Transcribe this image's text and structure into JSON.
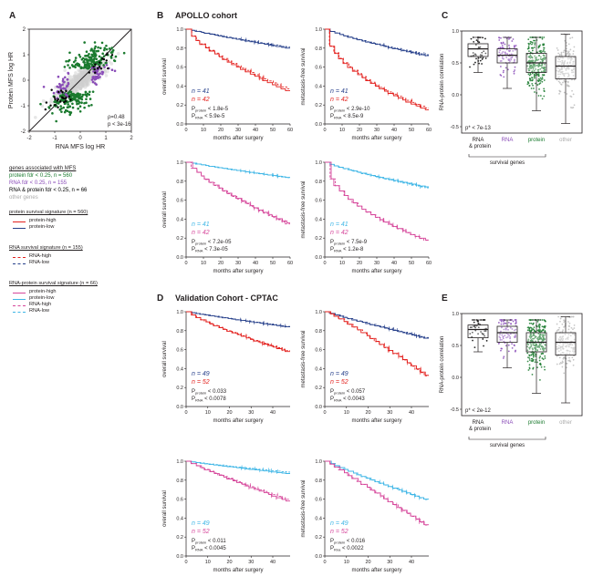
{
  "panels": {
    "A": "A",
    "B": "B",
    "C": "C",
    "D": "D",
    "E": "E"
  },
  "titles": {
    "apollo": "APOLLO cohort",
    "cptac": "Validation Cohort - CPTAC"
  },
  "panelA": {
    "xlabel": "RNA MFS log HR",
    "ylabel": "Protein MFS log HR",
    "rho": "ρ=0.48",
    "p": "p < 3e-16",
    "xticks": [
      "-2",
      "-1",
      "0",
      "1",
      "2"
    ],
    "yticks": [
      "2",
      "1",
      "0",
      "-1",
      "-2"
    ]
  },
  "legendA": {
    "header": "genes associated with MFS",
    "protein": "protein fdr < 0.25, n = 560",
    "rna": "RNA fdr < 0.25, n = 155",
    "both": "RNA & protein fdr < 0.25, n = 66",
    "other": "other genes"
  },
  "signatureLegends": [
    {
      "header": "protein survival signature (n = 560)",
      "items": [
        {
          "label": "protein-high",
          "color": "#e3211e",
          "style": "solid"
        },
        {
          "label": "protein-low",
          "color": "#27408b",
          "style": "solid"
        }
      ]
    },
    {
      "header": "RNA survival signature (n = 155)",
      "items": [
        {
          "label": "RNA-high",
          "color": "#e3211e",
          "style": "dashed"
        },
        {
          "label": "RNA-low",
          "color": "#27408b",
          "style": "dashed"
        }
      ]
    },
    {
      "header": "RNA-protein survival signature (n = 66)",
      "items": [
        {
          "label": "protein-high",
          "color": "#d6479b",
          "style": "solid"
        },
        {
          "label": "protein-low",
          "color": "#3fb6e6",
          "style": "solid"
        },
        {
          "label": "RNA-high",
          "color": "#d6479b",
          "style": "dashed"
        },
        {
          "label": "RNA-low",
          "color": "#3fb6e6",
          "style": "dashed"
        }
      ]
    }
  ],
  "km": [
    {
      "id": "b1",
      "ylabel": "overall survival",
      "xmax": 60,
      "n1": "n = 41",
      "n2": "n = 42",
      "p1": "P",
      "p1sub": "protein",
      "p1val": " < 1.8e-5",
      "p2": "P",
      "p2sub": "RNA",
      "p2val": " < 5.9e-5",
      "c1": "#27408b",
      "c2": "#e3211e"
    },
    {
      "id": "b2",
      "ylabel": "metastasis-free survival",
      "xmax": 60,
      "n1": "n = 41",
      "n2": "n = 42",
      "p1": "P",
      "p1sub": "protein",
      "p1val": " < 2.9e-10",
      "p2": "P",
      "p2sub": "RNA",
      "p2val": " < 8.5e-9",
      "c1": "#27408b",
      "c2": "#e3211e"
    },
    {
      "id": "b3",
      "ylabel": "overall survival",
      "xmax": 60,
      "n1": "n = 41",
      "n2": "n = 42",
      "p1": "P",
      "p1sub": "protein",
      "p1val": " < 7.2e-05",
      "p2": "P",
      "p2sub": "RNA",
      "p2val": " < 7.3e-05",
      "c1": "#3fb6e6",
      "c2": "#d6479b"
    },
    {
      "id": "b4",
      "ylabel": "metastasis-free survival",
      "xmax": 60,
      "n1": "n = 41",
      "n2": "n = 42",
      "p1": "P",
      "p1sub": "protein",
      "p1val": " < 7.5e-9",
      "p2": "P",
      "p2sub": "RNA",
      "p2val": " < 1.2e-8",
      "c1": "#3fb6e6",
      "c2": "#d6479b"
    },
    {
      "id": "d1",
      "ylabel": "overall survival",
      "xmax": 48,
      "n1": "n = 49",
      "n2": "n = 52",
      "p1": "P",
      "p1sub": "protein",
      "p1val": " < 0.033",
      "p2": "P",
      "p2sub": "RNA",
      "p2val": " < 0.0078",
      "c1": "#27408b",
      "c2": "#e3211e"
    },
    {
      "id": "d2",
      "ylabel": "metastasis-free survival",
      "xmax": 48,
      "n1": "n = 49",
      "n2": "n = 52",
      "p1": "P",
      "p1sub": "protein",
      "p1val": " < 0.057",
      "p2": "P",
      "p2sub": "RNA",
      "p2val": " < 0.0043",
      "c1": "#27408b",
      "c2": "#e3211e"
    },
    {
      "id": "d3",
      "ylabel": "overall survival",
      "xmax": 48,
      "n1": "n = 49",
      "n2": "n = 52",
      "p1": "P",
      "p1sub": "protein",
      "p1val": " < 0.011",
      "p2": "P",
      "p2sub": "RNA",
      "p2val": " < 0.0045",
      "c1": "#3fb6e6",
      "c2": "#d6479b"
    },
    {
      "id": "d4",
      "ylabel": "metastasis-free survival",
      "xmax": 48,
      "n1": "n = 49",
      "n2": "n = 52",
      "p1": "P",
      "p1sub": "protein",
      "p1val": " < 0.016",
      "p2": "P",
      "p2sub": "Rna",
      "p2val": " < 0.0022",
      "c1": "#3fb6e6",
      "c2": "#d6479b"
    }
  ],
  "kmAxis": {
    "xlabel": "months after surgery",
    "yticks": [
      "0.0",
      "0.2",
      "0.4",
      "0.6",
      "0.8",
      "1.0"
    ],
    "xticksB": [
      "0",
      "10",
      "20",
      "30",
      "40",
      "50",
      "60"
    ],
    "xticksD": [
      "0",
      "10",
      "20",
      "30",
      "40"
    ]
  },
  "boxC": {
    "ylabel": "RNA-protein correlation",
    "pval": "p* < 7e-13",
    "yticks": [
      "1.0",
      "0.5",
      "0.0",
      "-0.5"
    ],
    "cats": [
      "RNA\n& protein",
      "RNA",
      "protein",
      "other"
    ],
    "bracket": "survival genes"
  },
  "boxE": {
    "ylabel": "RNA-protein correlation",
    "pval": "p* < 2e-12",
    "yticks": [
      "1.0",
      "0.5",
      "0.0",
      "-0.5"
    ],
    "cats": [
      "RNA\n& protein",
      "RNA",
      "protein",
      "other"
    ],
    "bracket": "survival genes"
  },
  "chart_data": [
    {
      "type": "scatter",
      "title": "",
      "xlabel": "RNA MFS log HR",
      "ylabel": "Protein MFS log HR",
      "xlim": [
        -2,
        2
      ],
      "ylim": [
        -2,
        2
      ],
      "series": [
        {
          "name": "protein fdr < 0.25",
          "color": "#1a7a2e"
        },
        {
          "name": "RNA fdr < 0.25",
          "color": "#8a4cb8"
        },
        {
          "name": "RNA & protein fdr < 0.25",
          "color": "#000000"
        },
        {
          "name": "other genes",
          "color": "#c8c8c8"
        }
      ]
    },
    {
      "type": "line",
      "title": "APOLLO overall survival",
      "xlabel": "months after surgery",
      "ylabel": "overall survival",
      "xlim": [
        0,
        60
      ],
      "ylim": [
        0,
        1
      ],
      "series": [
        {
          "name": "protein-low",
          "x": [
            0,
            10,
            20,
            30,
            40,
            50,
            60
          ],
          "values": [
            1,
            0.98,
            0.93,
            0.88,
            0.84,
            0.8,
            0.8
          ]
        },
        {
          "name": "protein-high",
          "x": [
            0,
            10,
            20,
            30,
            40,
            50,
            60
          ],
          "values": [
            1,
            0.9,
            0.7,
            0.55,
            0.45,
            0.38,
            0.35
          ]
        }
      ]
    },
    {
      "type": "line",
      "title": "APOLLO metastasis-free survival",
      "xlabel": "months after surgery",
      "ylabel": "metastasis-free survival",
      "xlim": [
        0,
        60
      ],
      "ylim": [
        0,
        1
      ],
      "series": [
        {
          "name": "protein-low",
          "x": [
            0,
            10,
            20,
            30,
            40,
            50,
            60
          ],
          "values": [
            1,
            0.95,
            0.88,
            0.82,
            0.78,
            0.72,
            0.72
          ]
        },
        {
          "name": "protein-high",
          "x": [
            0,
            10,
            20,
            30,
            40,
            50,
            60
          ],
          "values": [
            1,
            0.75,
            0.45,
            0.3,
            0.22,
            0.15,
            0.15
          ]
        }
      ]
    },
    {
      "type": "line",
      "title": "APOLLO overall survival RNA-protein",
      "xlabel": "months after surgery",
      "ylabel": "overall survival",
      "xlim": [
        0,
        60
      ],
      "ylim": [
        0,
        1
      ],
      "series": [
        {
          "name": "protein-low",
          "x": [
            0,
            10,
            20,
            30,
            40,
            50,
            60
          ],
          "values": [
            1,
            0.98,
            0.95,
            0.9,
            0.86,
            0.84,
            0.84
          ]
        },
        {
          "name": "protein-high",
          "x": [
            0,
            10,
            20,
            30,
            40,
            50,
            60
          ],
          "values": [
            1,
            0.88,
            0.7,
            0.55,
            0.45,
            0.4,
            0.36
          ]
        }
      ]
    },
    {
      "type": "line",
      "title": "APOLLO metastasis-free survival RNA-protein",
      "xlabel": "months after surgery",
      "ylabel": "metastasis-free survival",
      "xlim": [
        0,
        60
      ],
      "ylim": [
        0,
        1
      ],
      "series": [
        {
          "name": "protein-low",
          "x": [
            0,
            10,
            20,
            30,
            40,
            50,
            60
          ],
          "values": [
            1,
            0.98,
            0.93,
            0.85,
            0.8,
            0.75,
            0.74
          ]
        },
        {
          "name": "protein-high",
          "x": [
            0,
            10,
            20,
            30,
            40,
            50,
            60
          ],
          "values": [
            1,
            0.78,
            0.45,
            0.32,
            0.25,
            0.2,
            0.18
          ]
        }
      ]
    },
    {
      "type": "line",
      "title": "CPTAC overall survival",
      "xlabel": "months after surgery",
      "ylabel": "overall survival",
      "xlim": [
        0,
        48
      ],
      "ylim": [
        0,
        1
      ],
      "series": [
        {
          "name": "protein-low",
          "x": [
            0,
            10,
            20,
            30,
            40,
            48
          ],
          "values": [
            1,
            0.95,
            0.9,
            0.86,
            0.84,
            0.84
          ]
        },
        {
          "name": "protein-high",
          "x": [
            0,
            10,
            20,
            30,
            40,
            48
          ],
          "values": [
            1,
            0.9,
            0.78,
            0.6,
            0.58,
            0.58
          ]
        }
      ]
    },
    {
      "type": "line",
      "title": "CPTAC metastasis-free survival",
      "xlabel": "months after surgery",
      "ylabel": "metastasis-free survival",
      "xlim": [
        0,
        48
      ],
      "ylim": [
        0,
        1
      ],
      "series": [
        {
          "name": "protein-low",
          "x": [
            0,
            10,
            20,
            30,
            40,
            48
          ],
          "values": [
            1,
            0.92,
            0.85,
            0.78,
            0.72,
            0.72
          ]
        },
        {
          "name": "protein-high",
          "x": [
            0,
            10,
            20,
            30,
            40,
            48
          ],
          "values": [
            1,
            0.88,
            0.7,
            0.55,
            0.35,
            0.33
          ]
        }
      ]
    },
    {
      "type": "line",
      "title": "CPTAC overall survival RNA-protein",
      "xlabel": "months after surgery",
      "ylabel": "overall survival",
      "xlim": [
        0,
        48
      ],
      "ylim": [
        0,
        1
      ],
      "series": [
        {
          "name": "protein-low",
          "x": [
            0,
            10,
            20,
            30,
            40,
            48
          ],
          "values": [
            1,
            0.96,
            0.92,
            0.88,
            0.87,
            0.87
          ]
        },
        {
          "name": "protein-high",
          "x": [
            0,
            10,
            20,
            30,
            40,
            48
          ],
          "values": [
            1,
            0.9,
            0.75,
            0.6,
            0.58,
            0.58
          ]
        }
      ]
    },
    {
      "type": "line",
      "title": "CPTAC metastasis-free survival RNA-protein",
      "xlabel": "months after surgery",
      "ylabel": "metastasis-free survival",
      "xlim": [
        0,
        48
      ],
      "ylim": [
        0,
        1
      ],
      "series": [
        {
          "name": "protein-low",
          "x": [
            0,
            10,
            20,
            30,
            40,
            48
          ],
          "values": [
            1,
            0.9,
            0.8,
            0.68,
            0.6,
            0.6
          ]
        },
        {
          "name": "protein-high",
          "x": [
            0,
            10,
            20,
            30,
            40,
            48
          ],
          "values": [
            1,
            0.86,
            0.7,
            0.52,
            0.34,
            0.33
          ]
        }
      ]
    },
    {
      "type": "box",
      "title": "",
      "ylabel": "RNA-protein correlation",
      "categories": [
        "RNA & protein",
        "RNA",
        "protein",
        "other"
      ],
      "median": [
        0.72,
        0.62,
        0.5,
        0.45
      ],
      "q1": [
        0.6,
        0.5,
        0.35,
        0.25
      ],
      "q3": [
        0.8,
        0.72,
        0.65,
        0.6
      ],
      "min": [
        0.35,
        0.1,
        -0.25,
        -0.45
      ],
      "max": [
        0.9,
        0.9,
        0.9,
        0.95
      ],
      "ylim": [
        -0.6,
        1.0
      ]
    },
    {
      "type": "box",
      "title": "",
      "ylabel": "RNA-protein correlation",
      "categories": [
        "RNA & protein",
        "RNA",
        "protein",
        "other"
      ],
      "median": [
        0.75,
        0.7,
        0.55,
        0.55
      ],
      "q1": [
        0.62,
        0.55,
        0.4,
        0.35
      ],
      "q3": [
        0.82,
        0.8,
        0.7,
        0.7
      ],
      "min": [
        0.4,
        0.15,
        -0.25,
        -0.4
      ],
      "max": [
        0.9,
        0.9,
        0.9,
        0.95
      ],
      "ylim": [
        -0.6,
        1.0
      ]
    }
  ]
}
